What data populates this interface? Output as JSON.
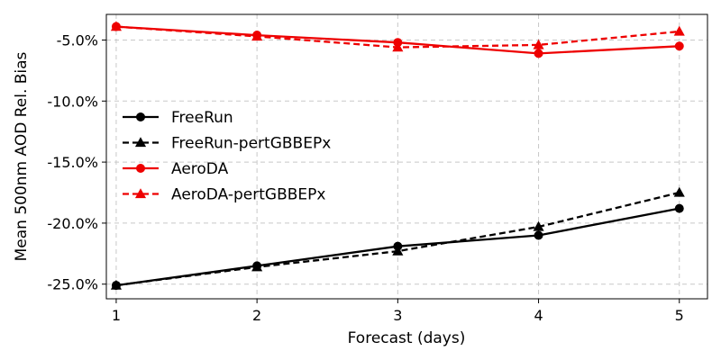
{
  "chart_data": {
    "type": "line",
    "title": "",
    "xlabel": "Forecast (days)",
    "ylabel": "Mean 500nm AOD Rel. Bias",
    "x": [
      1,
      2,
      3,
      4,
      5
    ],
    "xlim": [
      0.93,
      5.2
    ],
    "ylim": [
      -26.2,
      -2.9
    ],
    "yticks": [
      -25,
      -20,
      -15,
      -10,
      -5
    ],
    "ytick_labels": [
      "-25.0%",
      "-20.0%",
      "-15.0%",
      "-10.0%",
      "-5.0%"
    ],
    "xtick_labels": [
      "1",
      "2",
      "3",
      "4",
      "5"
    ],
    "grid": true,
    "legend_position": "center-left",
    "series": [
      {
        "name": "FreeRun",
        "color": "#000000",
        "dash": "solid",
        "marker": "circle",
        "values": [
          -25.1,
          -23.5,
          -21.9,
          -21.0,
          -18.8
        ]
      },
      {
        "name": "FreeRun-pertGBBEPx",
        "color": "#000000",
        "dash": "dashed",
        "marker": "triangle",
        "values": [
          -25.1,
          -23.6,
          -22.3,
          -20.3,
          -17.5
        ]
      },
      {
        "name": "AeroDA",
        "color": "#ee0000",
        "dash": "solid",
        "marker": "circle",
        "values": [
          -3.9,
          -4.6,
          -5.2,
          -6.1,
          -5.5
        ]
      },
      {
        "name": "AeroDA-pertGBBEPx",
        "color": "#ee0000",
        "dash": "dashed",
        "marker": "triangle",
        "values": [
          -3.9,
          -4.7,
          -5.6,
          -5.4,
          -4.3
        ]
      }
    ]
  }
}
